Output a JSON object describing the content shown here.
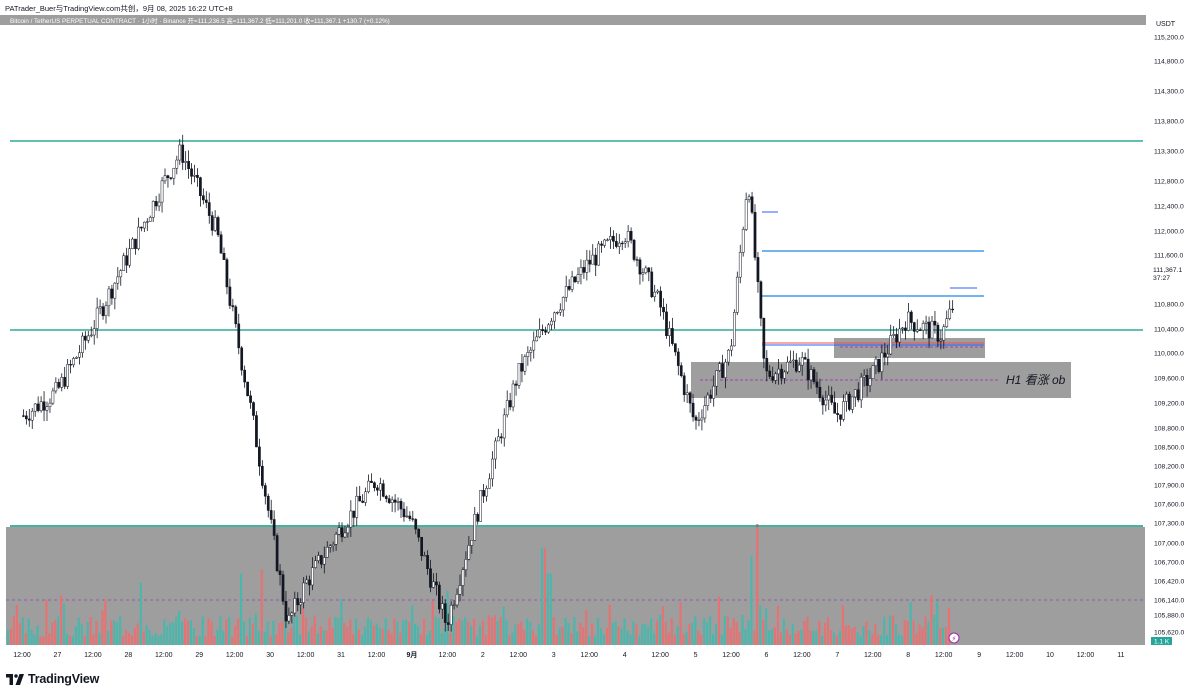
{
  "header": {
    "published_by": "PATrader_Buer与TradingView.com共创，9月 08, 2025 16:22 UTC+8"
  },
  "symbol_bar": {
    "text": "Bitcoin / TetherUS PERPETUAL CONTRACT · 1小时 · Binance  开=111,236.5  高=111,367.2  低=111,201.0  收=111,367.1  +130.7 (+0.12%)"
  },
  "price_axis": {
    "currency": "USDT",
    "labels": [
      "115,200.0",
      "114,800.0",
      "114,300.0",
      "113,800.0",
      "113,300.0",
      "112,800.0",
      "112,400.0",
      "112,000.0",
      "111,600.0",
      "110,800.0",
      "110,400.0",
      "110,000.0",
      "109,600.0",
      "109,200.0",
      "108,800.0",
      "108,500.0",
      "108,200.0",
      "107,900.0",
      "107,600.0",
      "107,300.0",
      "107,000.0",
      "106,700.0",
      "106,420.0",
      "106,140.0",
      "105,880.0",
      "105,620.0"
    ],
    "current_price": "111,367.1",
    "countdown": "37:27",
    "volume_label": "1.1 K"
  },
  "time_axis": {
    "labels": [
      "12:00",
      "27",
      "12:00",
      "28",
      "12:00",
      "29",
      "12:00",
      "30",
      "12:00",
      "31",
      "12:00",
      "9月",
      "12:00",
      "2",
      "12:00",
      "3",
      "12:00",
      "4",
      "12:00",
      "5",
      "12:00",
      "6",
      "12:00",
      "7",
      "12:00",
      "8",
      "12:00",
      "9",
      "12:00",
      "10",
      "12:00",
      "11"
    ]
  },
  "annotations": {
    "ob_label": "H1 看涨 ob"
  },
  "footer": {
    "brand": "TradingView"
  },
  "colors": {
    "up": "#26a69a",
    "down": "#ef5350",
    "candle": "#131722",
    "level_line": "#089981",
    "blue_line": "#2962ff",
    "zone": "#9e9e9e",
    "dashed": "#9c27b0"
  },
  "chart_data": {
    "type": "candlestick",
    "symbol": "Bitcoin / TetherUS PERPETUAL CONTRACT",
    "interval": "1小时",
    "exchange": "Binance",
    "ohlc_last": {
      "open": 111236.5,
      "high": 111367.2,
      "low": 111201.0,
      "close": 111367.1,
      "change": 130.7,
      "change_pct": 0.12
    },
    "x_range": [
      "Aug 26 12:00",
      "Sep 11 12:00"
    ],
    "y_range_upper_panel": [
      109000,
      115300
    ],
    "y_range_lower_panel": [
      105620,
      107300
    ],
    "path_points": [
      [
        "Aug 26 12:00",
        110000
      ],
      [
        "Aug 27 00:00",
        110300
      ],
      [
        "Aug 27 12:00",
        111100
      ],
      [
        "Aug 28 00:00",
        112000
      ],
      [
        "Aug 28 12:00",
        112900
      ],
      [
        "Aug 28 18:00",
        113300
      ],
      [
        "Aug 29 06:00",
        112300
      ],
      [
        "Aug 29 18:00",
        110000
      ],
      [
        "Aug 30 06:00",
        107400
      ],
      [
        "Aug 30 12:00",
        107900
      ],
      [
        "Aug 31 00:00",
        108600
      ],
      [
        "Aug 31 12:00",
        109200
      ],
      [
        "Sep 1 00:00",
        108700
      ],
      [
        "Sep 1 12:00",
        107400
      ],
      [
        "Sep 2 00:00",
        109000
      ],
      [
        "Sep 2 12:00",
        110500
      ],
      [
        "Sep 3 00:00",
        111300
      ],
      [
        "Sep 3 12:00",
        111900
      ],
      [
        "Sep 4 00:00",
        112300
      ],
      [
        "Sep 4 12:00",
        111400
      ],
      [
        "Sep 5 00:00",
        109900
      ],
      [
        "Sep 5 12:00",
        110800
      ],
      [
        "Sep 5 18:00",
        113000
      ],
      [
        "Sep 6 00:00",
        110500
      ],
      [
        "Sep 6 12:00",
        110700
      ],
      [
        "Sep 7 00:00",
        110000
      ],
      [
        "Sep 7 12:00",
        110500
      ],
      [
        "Sep 8 00:00",
        111200
      ],
      [
        "Sep 8 12:00",
        111000
      ],
      [
        "Sep 8 16:00",
        111367
      ]
    ],
    "levels": [
      {
        "name": "resistance",
        "price": 113500
      },
      {
        "name": "mid-support",
        "price": 110400
      },
      {
        "name": "support",
        "price": 107300
      }
    ],
    "zones": [
      {
        "label": "H1 看涨 ob",
        "from": "Sep 5 00:00",
        "to": "Sep 9 12:00",
        "price_low": 109500,
        "price_high": 109900
      },
      {
        "label": "",
        "from": "Sep 6 12:00",
        "to": "Sep 8 12:00",
        "price_low": 110000,
        "price_high": 110200
      }
    ],
    "volume": {
      "last": "1.1 K",
      "up_color": "#26a69a",
      "down_color": "#ef5350"
    },
    "grid": false
  }
}
